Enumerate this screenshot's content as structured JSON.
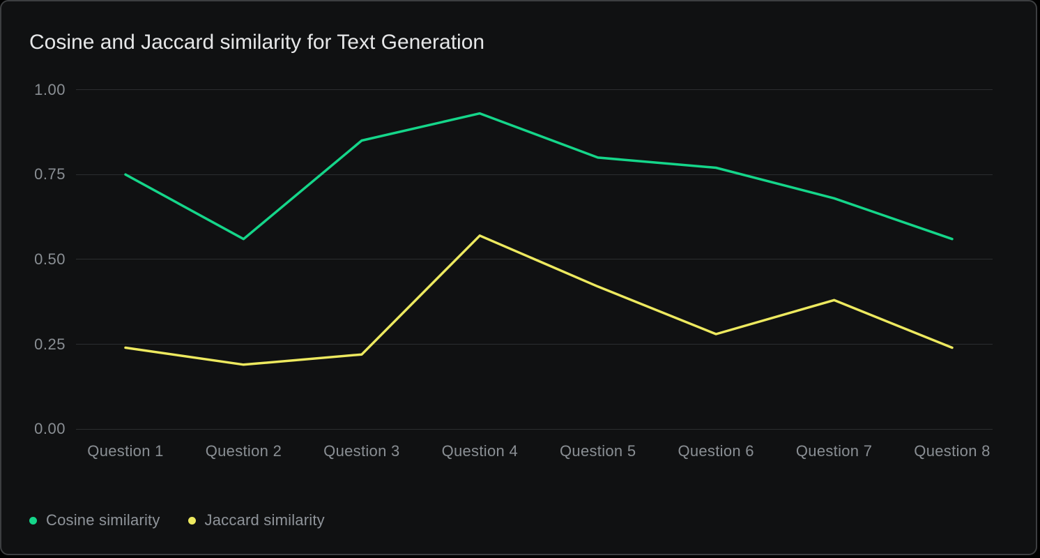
{
  "title": "Cosine and Jaccard similarity for Text Generation",
  "colors": {
    "outside_background": "#000000",
    "panel_background": "#101112",
    "panel_border": "#3d3f41",
    "title_text": "#e6e7e8",
    "axis_text": "#8a8f94",
    "gridline": "#2c2e30",
    "legend_text": "#8f949a",
    "cosine_line": "#15d68a",
    "jaccard_line": "#ede95f"
  },
  "chart_data": {
    "type": "line",
    "title": "Cosine and Jaccard similarity for Text Generation",
    "categories": [
      "Question 1",
      "Question 2",
      "Question 3",
      "Question 4",
      "Question 5",
      "Question 6",
      "Question 7",
      "Question 8"
    ],
    "series": [
      {
        "name": "Cosine similarity",
        "color": "#15d68a",
        "values": [
          0.75,
          0.56,
          0.85,
          0.93,
          0.8,
          0.77,
          0.68,
          0.56
        ]
      },
      {
        "name": "Jaccard similarity",
        "color": "#ede95f",
        "values": [
          0.24,
          0.19,
          0.22,
          0.57,
          0.42,
          0.28,
          0.38,
          0.24
        ]
      }
    ],
    "xlabel": "",
    "ylabel": "",
    "ylim": [
      0.0,
      1.0
    ],
    "ytick_labels": [
      "1.00",
      "0.75",
      "0.50",
      "0.25",
      "0.00"
    ],
    "ytick_values": [
      1.0,
      0.75,
      0.5,
      0.25,
      0.0
    ],
    "grid": "horizontal",
    "legend_position": "bottom-left"
  },
  "legend": {
    "items": [
      {
        "label": "Cosine similarity",
        "color": "#15d68a"
      },
      {
        "label": "Jaccard similarity",
        "color": "#ede95f"
      }
    ]
  }
}
